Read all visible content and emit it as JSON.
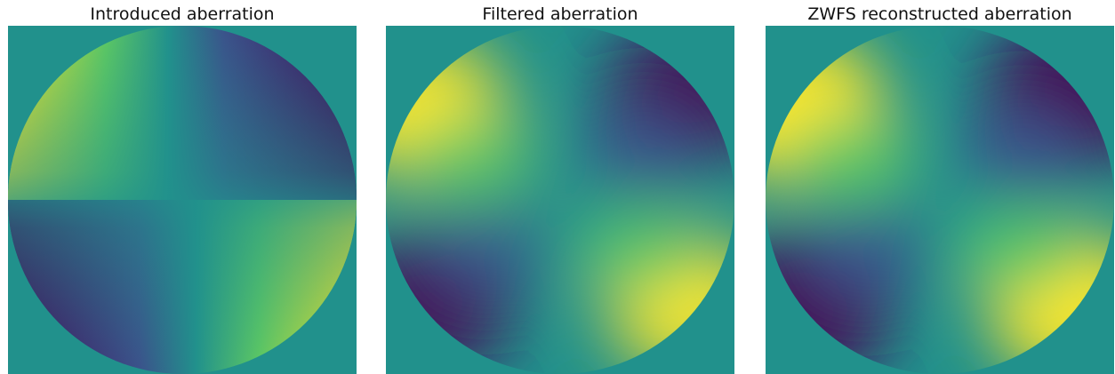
{
  "panels": [
    {
      "title": "Introduced aberration",
      "map": {
        "base": "#21918c",
        "warm_dir": "top-left",
        "smoothness": "sharp"
      }
    },
    {
      "title": "Filtered aberration",
      "map": {
        "base": "#21918c",
        "warm_dir": "top-left",
        "smoothness": "smooth"
      }
    },
    {
      "title": "ZWFS reconstructed aberration",
      "map": {
        "base": "#21918c",
        "warm_dir": "top-left",
        "smoothness": "smooth"
      }
    }
  ],
  "colormap": {
    "name": "viridis",
    "stops": [
      "#440154",
      "#3b528b",
      "#21918c",
      "#5ec962",
      "#fde725"
    ]
  }
}
